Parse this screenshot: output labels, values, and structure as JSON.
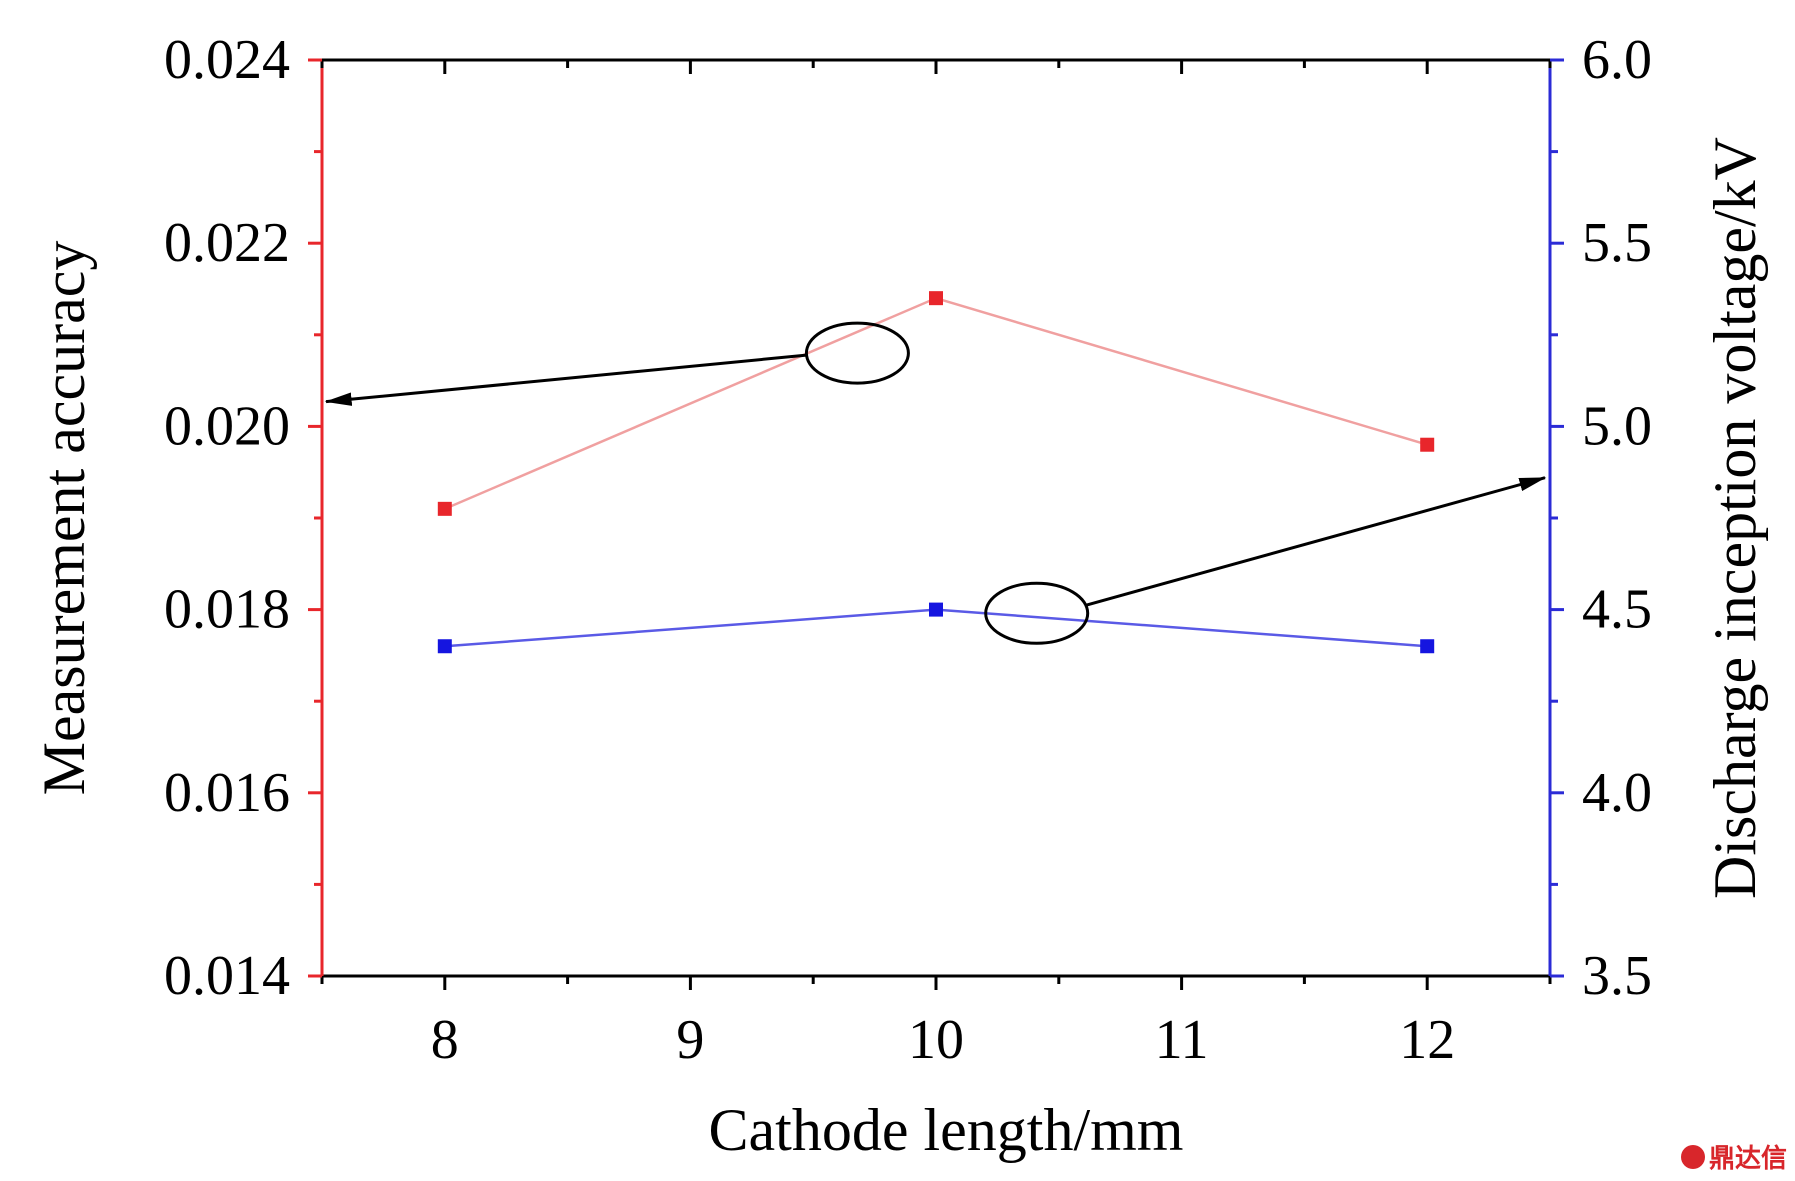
{
  "chart_data": {
    "type": "line",
    "title": "",
    "xlabel": "Cathode length/mm",
    "ylabel_left": "Measurement accuracy",
    "ylabel_right": "Discharge inception voltage/kV",
    "x_ticks": [
      8,
      9,
      10,
      11,
      12
    ],
    "xlim": [
      7.5,
      12.5
    ],
    "y_left_ticks": [
      "0.014",
      "0.016",
      "0.018",
      "0.020",
      "0.022",
      "0.024"
    ],
    "y_left_lim": [
      0.014,
      0.024
    ],
    "y_right_ticks": [
      "3.5",
      "4.0",
      "4.5",
      "5.0",
      "5.5",
      "6.0"
    ],
    "y_right_lim": [
      3.5,
      6.0
    ],
    "left_axis_color": "#e8262b",
    "right_axis_color": "#2b2bd6",
    "series": [
      {
        "axis": "left",
        "color": "#e8262b",
        "line_color": "#f0a0a0",
        "marker": "square",
        "x": [
          8,
          10,
          12
        ],
        "values": [
          0.0191,
          0.0214,
          0.0198
        ]
      },
      {
        "axis": "right",
        "color": "#1515e0",
        "line_color": "#5a5ae6",
        "marker": "square",
        "x": [
          8,
          10,
          12
        ],
        "values": [
          4.4,
          4.5,
          4.4
        ]
      }
    ],
    "annotations": [
      {
        "type": "ellipse-arrow",
        "series": 0,
        "points_to": "left-axis"
      },
      {
        "type": "ellipse-arrow",
        "series": 1,
        "points_to": "right-axis"
      }
    ],
    "grid": false,
    "legend": "none"
  },
  "watermark": {
    "text": "鼎达信",
    "color": "#d8262b"
  }
}
